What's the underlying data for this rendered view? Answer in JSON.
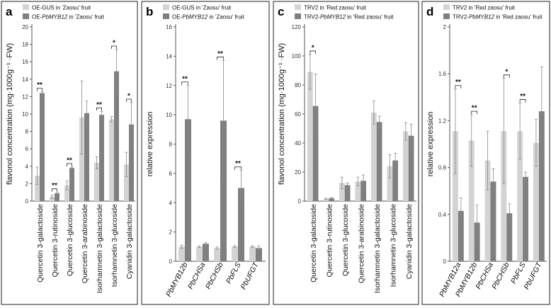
{
  "panels": [
    {
      "letter": "a",
      "legend": [
        {
          "prefix": "OE-GUS",
          "italic": "",
          "suffix": " in 'Zaosu' fruit",
          "color": "#d3d3d3"
        },
        {
          "prefix": "OE-",
          "italic": "PbMYB12",
          "suffix": " in 'Zaosu' fruit",
          "color": "#7f7f7f"
        }
      ],
      "ylabel": "flavonol concentration (mg·1000g⁻¹ ·FW)",
      "ylim": [
        0,
        20
      ],
      "ticks": [
        "0",
        "2",
        "4",
        "6",
        "8",
        "10",
        "12",
        "14",
        "16",
        "18",
        "20"
      ],
      "italic_categories": false,
      "categories": [
        "Quercetin 3-galactoside",
        "Quercetin 3-rutinoside",
        "Quercetin 3-glucoside",
        "Quercetin 3-arabinoside",
        "Isorhamnetin 3-galactoside",
        "Isorhamnetin 3-glucoside",
        "Cyanidin 3-galactoside"
      ],
      "series": [
        {
          "name": "OE-GUS",
          "values": [
            2.9,
            0.5,
            1.8,
            9.6,
            4.4,
            9.4,
            4.2
          ],
          "errors": [
            1.0,
            0.2,
            0.5,
            4.2,
            0.7,
            0.3,
            1.4
          ]
        },
        {
          "name": "OE-PbMYB12",
          "values": [
            12.4,
            0.9,
            3.8,
            10.1,
            9.9,
            14.9,
            8.8
          ],
          "errors": [
            0.15,
            0.1,
            0.1,
            1.4,
            0.4,
            2.5,
            2.5
          ]
        }
      ],
      "significance": [
        "**",
        "**",
        "**",
        "",
        "**",
        "*",
        "*"
      ]
    },
    {
      "letter": "b",
      "legend": [
        {
          "prefix": "OE-GUS",
          "italic": "",
          "suffix": " in 'Zaosu' fruit",
          "color": "#d3d3d3"
        },
        {
          "prefix": "OE-",
          "italic": "PbMYB12",
          "suffix": " in 'Zaosu' fruit",
          "color": "#7f7f7f"
        }
      ],
      "ylabel": "relative expression",
      "ylim": [
        0,
        16
      ],
      "ticks": [
        "0",
        "2",
        "4",
        "6",
        "8",
        "10",
        "12",
        "14",
        "16"
      ],
      "italic_categories": true,
      "categories": [
        "PbMYB12b",
        "PbCHSa",
        "PbCHSb",
        "PbFLS",
        "PbUFGT"
      ],
      "series": [
        {
          "name": "OE-GUS",
          "values": [
            1.0,
            1.0,
            0.9,
            1.0,
            1.0
          ],
          "errors": [
            0.1,
            0.05,
            0.08,
            0.06,
            0.05
          ]
        },
        {
          "name": "OE-PbMYB12",
          "values": [
            9.7,
            1.2,
            9.6,
            5.0,
            0.9
          ],
          "errors": [
            2.3,
            0.08,
            4.1,
            1.2,
            0.15
          ]
        }
      ],
      "significance": [
        "**",
        "",
        "**",
        "**",
        ""
      ]
    },
    {
      "letter": "c",
      "legend": [
        {
          "prefix": "TRV2 in 'Red zaosu' fruit",
          "italic": "",
          "suffix": "",
          "color": "#d3d3d3"
        },
        {
          "prefix": "TRV2-",
          "italic": "PbMYB12",
          "suffix": " in 'Red zaosu' fruit",
          "color": "#7f7f7f"
        }
      ],
      "ylabel": "flavonol concentration (mg·1000g⁻¹ ·FW)",
      "ylim": [
        0,
        120
      ],
      "ticks": [
        "0",
        "20",
        "40",
        "60",
        "80",
        "100",
        "120"
      ],
      "italic_categories": false,
      "categories": [
        "Quercetin 3-galactoside",
        "Quercetin 3-rutinoside",
        "Quercetin 3-glucoside",
        "Quercetin 3-arabinoside",
        "Isorhamnetin 3-galactoside",
        "Isorhamnetin 3-glucoside",
        "Cyanidin 3-galactoside"
      ],
      "series": [
        {
          "name": "TRV2",
          "values": [
            89,
            1.5,
            12.5,
            13.5,
            61,
            24,
            48
          ],
          "errors": [
            12,
            0.5,
            4,
            3,
            8,
            8,
            6
          ]
        },
        {
          "name": "TRV2-PbMYB12",
          "values": [
            65.5,
            2,
            11,
            14,
            54.5,
            28,
            45
          ],
          "errors": [
            22,
            0.5,
            1.5,
            4,
            4,
            5,
            8
          ]
        }
      ],
      "significance": [
        "*",
        "",
        "",
        "",
        "",
        "",
        ""
      ]
    },
    {
      "letter": "d",
      "legend": [
        {
          "prefix": "TRV2 in 'Red zaosu' fruit",
          "italic": "",
          "suffix": "",
          "color": "#d3d3d3"
        },
        {
          "prefix": "TRV2-",
          "italic": "PbMYB12",
          "suffix": " in 'Red zaosu' fruit",
          "color": "#7f7f7f"
        }
      ],
      "ylabel": "relative expression",
      "ylim": [
        0,
        2
      ],
      "ticks": [
        "0",
        "0.4",
        "0.8",
        "1.2",
        "1.6",
        "2"
      ],
      "italic_categories": true,
      "categories": [
        "PbMYB12a",
        "PbMYB12b",
        "PbCHSa",
        "PbCHSb",
        "PbFLS",
        "PbUFGT"
      ],
      "series": [
        {
          "name": "TRV2",
          "values": [
            1.11,
            1.03,
            0.86,
            1.11,
            1.11,
            1.01
          ],
          "errors": [
            0.36,
            0.22,
            0.25,
            0.45,
            0.24,
            0.2
          ]
        },
        {
          "name": "TRV2-PbMYB12",
          "values": [
            0.43,
            0.33,
            0.68,
            0.41,
            0.72,
            1.28
          ],
          "errors": [
            0.11,
            0.15,
            0.11,
            0.08,
            0.04,
            0.38
          ]
        }
      ],
      "significance": [
        "**",
        "**",
        "",
        "*",
        "**",
        ""
      ]
    }
  ]
}
